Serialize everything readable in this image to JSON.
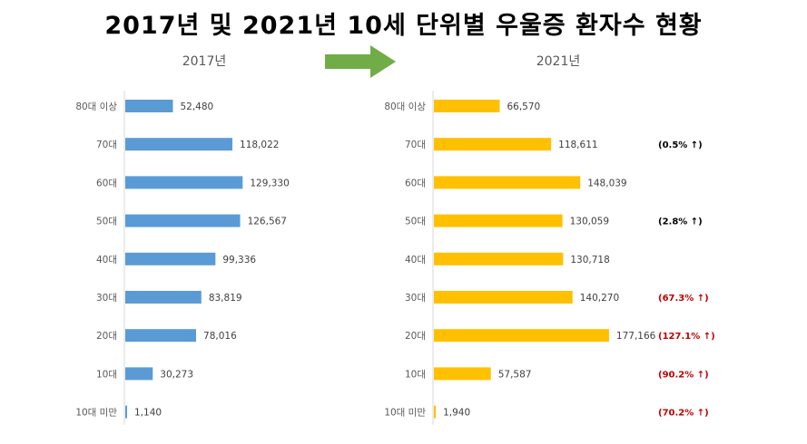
{
  "title": "2017년 및 2021년 10세 단위별 우울증 환자수 현황",
  "chart_data": [
    {
      "type": "bar",
      "orientation": "horizontal",
      "title": "2017년",
      "categories": [
        "80대 이상",
        "70대",
        "60대",
        "50대",
        "40대",
        "30대",
        "20대",
        "10대",
        "10대 미만"
      ],
      "values": [
        52480,
        118022,
        129330,
        126567,
        99336,
        83819,
        78016,
        30273,
        1140
      ],
      "labels": [
        "52,480",
        "118,022",
        "129,330",
        "126,567",
        "99,336",
        "83,819",
        "78,016",
        "30,273",
        "1,140"
      ],
      "annotations": [
        "",
        "",
        "",
        "",
        "",
        "",
        "",
        "",
        ""
      ],
      "color": "#5b9bd5",
      "xlim": [
        0,
        180000
      ],
      "grid": false
    },
    {
      "type": "bar",
      "orientation": "horizontal",
      "title": "2021년",
      "categories": [
        "80대 이상",
        "70대",
        "60대",
        "50대",
        "40대",
        "30대",
        "20대",
        "10대",
        "10대 미만"
      ],
      "values": [
        66570,
        118611,
        148039,
        130059,
        130718,
        140270,
        177166,
        57587,
        1940
      ],
      "labels": [
        "66,570",
        "118,611",
        "148,039",
        "130,059",
        "130,718",
        "140,270",
        "177,166",
        "57,587",
        "1,940"
      ],
      "annotations": [
        "",
        "(0.5% ↑)",
        "",
        "(2.8% ↑)",
        "",
        "(67.3% ↑)",
        "(127.1% ↑)",
        "(90.2% ↑)",
        "(70.2% ↑)"
      ],
      "annotation_colors": [
        "",
        "#000000",
        "",
        "#000000",
        "",
        "#c00000",
        "#c00000",
        "#c00000",
        "#c00000"
      ],
      "color": "#ffc000",
      "xlim": [
        0,
        180000
      ],
      "grid": false
    }
  ],
  "arrow_color": "#70ad47"
}
